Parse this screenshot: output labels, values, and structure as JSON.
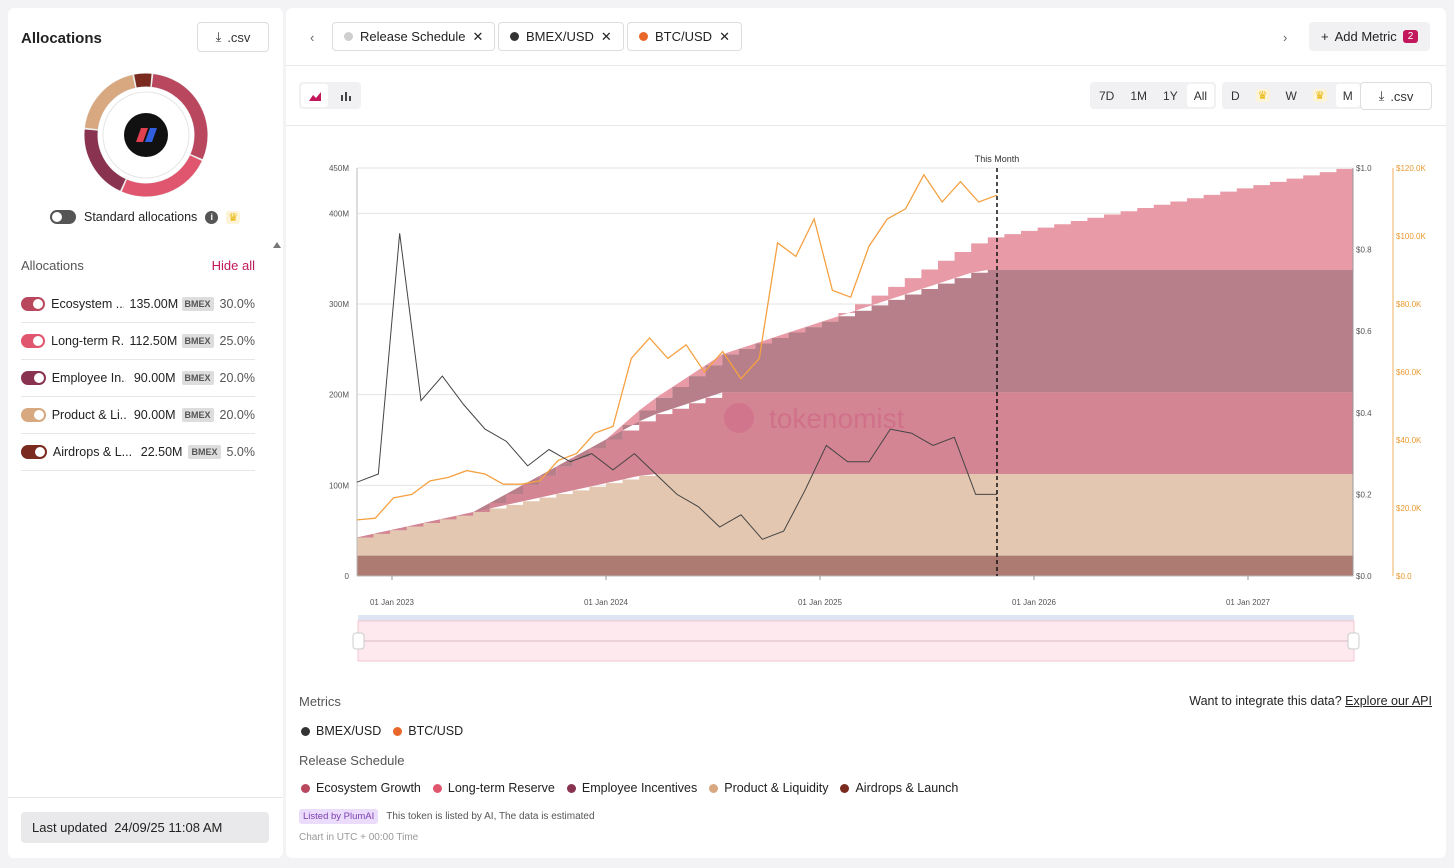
{
  "sidebar": {
    "title": "Allocations",
    "csv_label": ".csv",
    "standard_allocations_label": "Standard allocations",
    "allocations_header": "Allocations",
    "hide_all_label": "Hide all",
    "items": [
      {
        "name": "Ecosystem ...",
        "amount": "135.00M",
        "tag": "BMEX",
        "pct": "30.0%",
        "color": "#b9485f"
      },
      {
        "name": "Long-term R...",
        "amount": "112.50M",
        "tag": "BMEX",
        "pct": "25.0%",
        "color": "#e0566e"
      },
      {
        "name": "Employee In...",
        "amount": "90.00M",
        "tag": "BMEX",
        "pct": "20.0%",
        "color": "#8a3350"
      },
      {
        "name": "Product & Li...",
        "amount": "90.00M",
        "tag": "BMEX",
        "pct": "20.0%",
        "color": "#d8a880"
      },
      {
        "name": "Airdrops & L...",
        "amount": "22.50M",
        "tag": "BMEX",
        "pct": "5.0%",
        "color": "#7a2a1e"
      }
    ],
    "last_updated_label": "Last updated",
    "last_updated_value": "24/09/25 11:08 AM"
  },
  "tabs": [
    {
      "label": "Release Schedule",
      "dot_color": "#cfcfcf"
    },
    {
      "label": "BMEX/USD",
      "dot_color": "#333333"
    },
    {
      "label": "BTC/USD",
      "dot_color": "#e8672a"
    }
  ],
  "add_metric": {
    "label": "Add Metric",
    "count": "2"
  },
  "toolbar": {
    "ranges": [
      "7D",
      "1M",
      "1Y",
      "All"
    ],
    "active_range": "All",
    "granularity": [
      "D",
      "W",
      "M"
    ],
    "active_granularity": "M",
    "csv_label": ".csv"
  },
  "chart_data": {
    "type": "area",
    "watermark": "tokenomist",
    "annotation": "This Month",
    "x_ticks": [
      "01 Jan 2023",
      "01 Jan 2024",
      "01 Jan 2025",
      "01 Jan 2026",
      "01 Jan 2027"
    ],
    "y_left_ticks": [
      "0",
      "100M",
      "200M",
      "300M",
      "400M",
      "450M"
    ],
    "y_mid_ticks": [
      "$0.0",
      "$0.2",
      "$0.4",
      "$0.6",
      "$0.8",
      "$1.0"
    ],
    "y_right_ticks": [
      "$0.0",
      "$20.0K",
      "$40.0K",
      "$60.0K",
      "$80.0K",
      "$100.0K",
      "$120.0K"
    ],
    "ylim_left": [
      0,
      450000000
    ],
    "ylim_mid": [
      0,
      1.0
    ],
    "ylim_right": [
      0,
      120000
    ],
    "series": [
      {
        "name": "Airdrops & Launch",
        "color": "#ad7b72",
        "total": 22500000
      },
      {
        "name": "Product & Liquidity",
        "color": "#e3c7b0",
        "total": 90000000
      },
      {
        "name": "Employee Incentives",
        "color": "#d48594",
        "total": 90000000
      },
      {
        "name": "Ecosystem Growth",
        "color": "#b77f8a",
        "total": 135000000
      },
      {
        "name": "Long-term Reserve",
        "color": "#e89aa6",
        "total": 112500000
      }
    ],
    "bmex_usd": [
      0.23,
      0.25,
      0.84,
      0.43,
      0.49,
      0.42,
      0.36,
      0.33,
      0.27,
      0.31,
      0.28,
      0.3,
      0.26,
      0.3,
      0.25,
      0.2,
      0.17,
      0.12,
      0.15,
      0.09,
      0.11,
      0.21,
      0.32,
      0.28,
      0.28,
      0.36,
      0.35,
      0.32,
      0.34,
      0.2,
      0.2
    ],
    "btc_usd": [
      16500,
      17000,
      23000,
      24000,
      28000,
      29000,
      31000,
      30000,
      27000,
      27000,
      28000,
      34000,
      36000,
      42000,
      44000,
      64000,
      70000,
      64000,
      68000,
      60000,
      66000,
      58000,
      64000,
      98000,
      94000,
      105000,
      84000,
      82000,
      97000,
      105000,
      108000,
      118000,
      110000,
      116000,
      110000,
      112000
    ],
    "this_month_x": "Sep 2025"
  },
  "footer": {
    "metrics_label": "Metrics",
    "metrics": [
      {
        "name": "BMEX/USD",
        "color": "#333333"
      },
      {
        "name": "BTC/USD",
        "color": "#e8672a"
      }
    ],
    "release_label": "Release Schedule",
    "release_items": [
      {
        "name": "Ecosystem Growth",
        "color": "#b9485f"
      },
      {
        "name": "Long-term Reserve",
        "color": "#e0566e"
      },
      {
        "name": "Employee Incentives",
        "color": "#8a3350"
      },
      {
        "name": "Product & Liquidity",
        "color": "#d8a880"
      },
      {
        "name": "Airdrops & Launch",
        "color": "#7a2a1e"
      }
    ],
    "api_text": "Want to integrate this data?",
    "api_link": "Explore our API",
    "listed_badge": "Listed by PlumAI",
    "listed_text": "This token is listed by AI, The data is estimated",
    "utc_text": "Chart in UTC + 00:00 Time"
  }
}
